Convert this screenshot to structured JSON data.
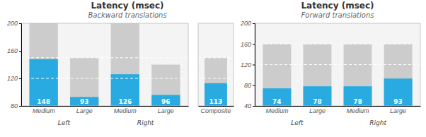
{
  "chart_data": [
    {
      "type": "bar",
      "title": "Latency (msec)",
      "subtitle": "Backward translations",
      "categories": [
        "Medium",
        "Large",
        "Medium",
        "Large"
      ],
      "annotations": [
        "Left",
        "Right"
      ],
      "series": [
        {
          "color": "#CCCCCC",
          "values": [
            200,
            150,
            200,
            140
          ]
        },
        {
          "color": "#29ABE2",
          "values": [
            148,
            93,
            126,
            96
          ],
          "data_labels": true
        }
      ],
      "reference_lines": [
        120,
        150
      ],
      "ylim": [
        80,
        200
      ],
      "yticks": [
        80,
        120,
        160,
        200
      ]
    },
    {
      "type": "bar",
      "categories": [
        "Composite"
      ],
      "series": [
        {
          "color": "#CCCCCC",
          "values": [
            150
          ]
        },
        {
          "color": "#29ABE2",
          "values": [
            113
          ],
          "data_labels": true
        }
      ],
      "reference_lines": [
        120,
        150
      ],
      "ylim": [
        80,
        200
      ],
      "tick_labels": "x"
    },
    {
      "type": "bar",
      "title": "Latency (msec)",
      "subtitle": "Forward translations",
      "categories": [
        "Medium",
        "Large",
        "Medium",
        "Large"
      ],
      "annotations": [
        "Left",
        "Right"
      ],
      "series": [
        {
          "color": "#CCCCCC",
          "values": [
            160,
            160,
            160,
            160
          ]
        },
        {
          "color": "#29ABE2",
          "values": [
            74,
            78,
            78,
            93
          ],
          "data_labels": true
        }
      ],
      "reference_lines": [
        120,
        160
      ],
      "ylim": [
        40,
        200
      ],
      "yticks": [
        40,
        80,
        120,
        160,
        200
      ]
    }
  ]
}
